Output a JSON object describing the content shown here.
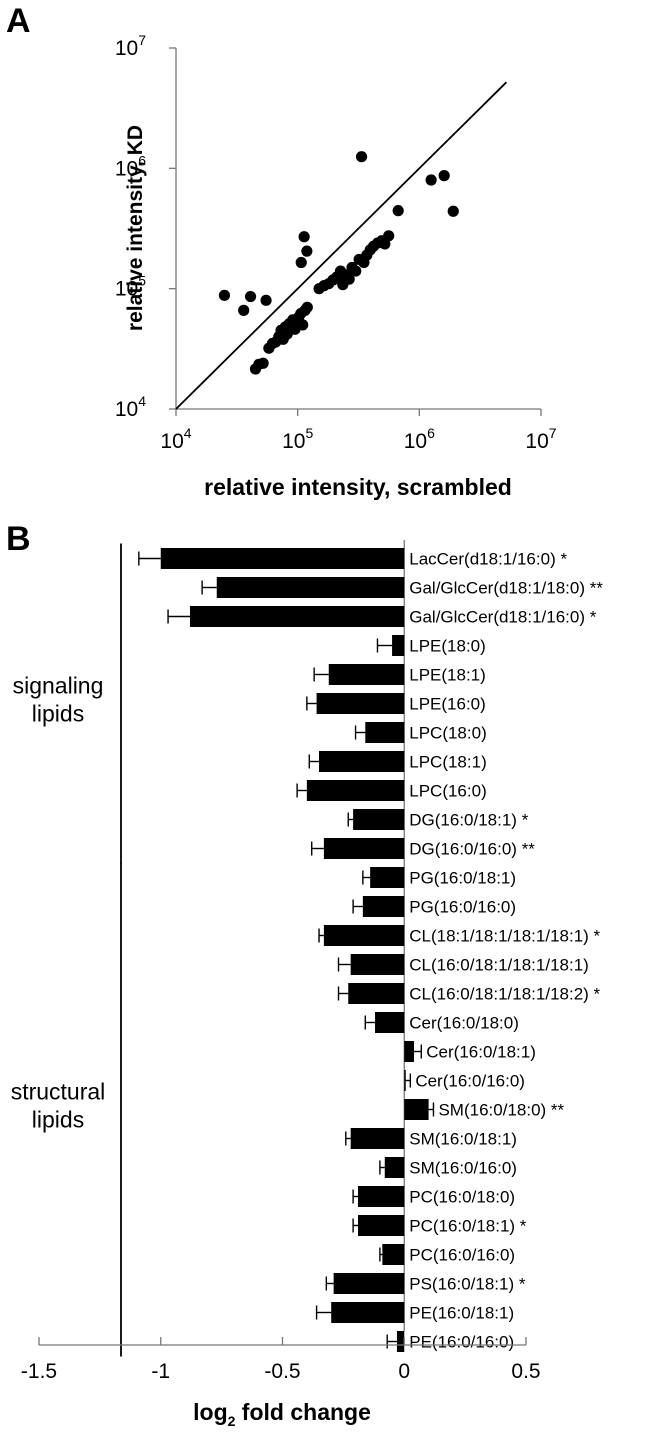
{
  "chart_data": [
    {
      "panel": "A",
      "type": "scatter",
      "xlabel": "relative intensity, scrambled",
      "ylabel": "relative intensity, KD",
      "xscale": "log",
      "yscale": "log",
      "xlim": [
        10000,
        10000000
      ],
      "ylim": [
        10000,
        10000000
      ],
      "x_ticks": [
        {
          "base": "10",
          "exp": "4"
        },
        {
          "base": "10",
          "exp": "5"
        },
        {
          "base": "10",
          "exp": "6"
        },
        {
          "base": "10",
          "exp": "7"
        }
      ],
      "y_ticks": [
        {
          "base": "10",
          "exp": "4"
        },
        {
          "base": "10",
          "exp": "5"
        },
        {
          "base": "10",
          "exp": "6"
        },
        {
          "base": "10",
          "exp": "7"
        }
      ],
      "reference_line": "y = x",
      "points": [
        {
          "x": 25000,
          "y": 88000
        },
        {
          "x": 36000,
          "y": 66000
        },
        {
          "x": 41000,
          "y": 86000
        },
        {
          "x": 55000,
          "y": 80000
        },
        {
          "x": 45000,
          "y": 21500
        },
        {
          "x": 48000,
          "y": 23500
        },
        {
          "x": 52000,
          "y": 24000
        },
        {
          "x": 58000,
          "y": 32000
        },
        {
          "x": 62000,
          "y": 35000
        },
        {
          "x": 66000,
          "y": 36000
        },
        {
          "x": 70000,
          "y": 40000
        },
        {
          "x": 73000,
          "y": 45000
        },
        {
          "x": 76000,
          "y": 38000
        },
        {
          "x": 79000,
          "y": 48000
        },
        {
          "x": 82000,
          "y": 42000
        },
        {
          "x": 85000,
          "y": 51000
        },
        {
          "x": 88000,
          "y": 47000
        },
        {
          "x": 91000,
          "y": 55000
        },
        {
          "x": 95000,
          "y": 46000
        },
        {
          "x": 98000,
          "y": 53000
        },
        {
          "x": 102000,
          "y": 58000
        },
        {
          "x": 106000,
          "y": 62000
        },
        {
          "x": 110000,
          "y": 50000
        },
        {
          "x": 115000,
          "y": 66000
        },
        {
          "x": 120000,
          "y": 70000
        },
        {
          "x": 107000,
          "y": 165000
        },
        {
          "x": 113000,
          "y": 270000
        },
        {
          "x": 119000,
          "y": 205000
        },
        {
          "x": 150000,
          "y": 100000
        },
        {
          "x": 165000,
          "y": 106000
        },
        {
          "x": 180000,
          "y": 110000
        },
        {
          "x": 195000,
          "y": 118000
        },
        {
          "x": 210000,
          "y": 125000
        },
        {
          "x": 225000,
          "y": 140000
        },
        {
          "x": 235000,
          "y": 108000
        },
        {
          "x": 250000,
          "y": 130000
        },
        {
          "x": 265000,
          "y": 120000
        },
        {
          "x": 280000,
          "y": 150000
        },
        {
          "x": 300000,
          "y": 140000
        },
        {
          "x": 320000,
          "y": 175000
        },
        {
          "x": 335000,
          "y": 1250000
        },
        {
          "x": 350000,
          "y": 165000
        },
        {
          "x": 370000,
          "y": 190000
        },
        {
          "x": 395000,
          "y": 210000
        },
        {
          "x": 420000,
          "y": 225000
        },
        {
          "x": 455000,
          "y": 240000
        },
        {
          "x": 490000,
          "y": 250000
        },
        {
          "x": 520000,
          "y": 235000
        },
        {
          "x": 560000,
          "y": 275000
        },
        {
          "x": 670000,
          "y": 445000
        },
        {
          "x": 1250000,
          "y": 800000
        },
        {
          "x": 1600000,
          "y": 870000
        },
        {
          "x": 1900000,
          "y": 440000
        }
      ]
    },
    {
      "panel": "B",
      "type": "bar",
      "orientation": "horizontal",
      "xlabel_main": "log",
      "xlabel_sub": "2",
      "xlabel_rest": " fold change",
      "xlim": [
        -1.5,
        0.5
      ],
      "x_ticks": [
        "-1.5",
        "-1",
        "-0.5",
        "0",
        "0.5"
      ],
      "groups": [
        {
          "label_line1": "signaling",
          "label_line2": "lipids",
          "from": 0,
          "to": 10
        },
        {
          "label_line1": "structural",
          "label_line2": "lipids",
          "from": 11,
          "to": 27
        }
      ],
      "bars": [
        {
          "label": "LacCer(d18:1/16:0) *",
          "value": -1.0,
          "error": 0.09
        },
        {
          "label": "Gal/GlcCer(d18:1/18:0) **",
          "value": -0.77,
          "error": 0.06
        },
        {
          "label": "Gal/GlcCer(d18:1/16:0) *",
          "value": -0.88,
          "error": 0.09
        },
        {
          "label": "LPE(18:0)",
          "value": -0.05,
          "error": 0.06
        },
        {
          "label": "LPE(18:1)",
          "value": -0.31,
          "error": 0.06
        },
        {
          "label": "LPE(16:0)",
          "value": -0.36,
          "error": 0.04
        },
        {
          "label": "LPC(18:0)",
          "value": -0.16,
          "error": 0.04
        },
        {
          "label": "LPC(18:1)",
          "value": -0.35,
          "error": 0.04
        },
        {
          "label": "LPC(16:0)",
          "value": -0.4,
          "error": 0.04
        },
        {
          "label": "DG(16:0/18:1) *",
          "value": -0.21,
          "error": 0.02
        },
        {
          "label": "DG(16:0/16:0) **",
          "value": -0.33,
          "error": 0.05
        },
        {
          "label": "PG(16:0/18:1)",
          "value": -0.14,
          "error": 0.03
        },
        {
          "label": "PG(16:0/16:0)",
          "value": -0.17,
          "error": 0.04
        },
        {
          "label": "CL(18:1/18:1/18:1/18:1) *",
          "value": -0.33,
          "error": 0.02
        },
        {
          "label": "CL(16:0/18:1/18:1/18:1)",
          "value": -0.22,
          "error": 0.05
        },
        {
          "label": "CL(16:0/18:1/18:1/18:2) *",
          "value": -0.23,
          "error": 0.04
        },
        {
          "label": "Cer(16:0/18:0)",
          "value": -0.12,
          "error": 0.04
        },
        {
          "label": "Cer(16:0/18:1)",
          "value": 0.04,
          "error": 0.03
        },
        {
          "label": "Cer(16:0/16:0)",
          "value": 0.005,
          "error": 0.02
        },
        {
          "label": "SM(16:0/18:0) **",
          "value": 0.1,
          "error": 0.02
        },
        {
          "label": "SM(16:0/18:1)",
          "value": -0.22,
          "error": 0.02
        },
        {
          "label": "SM(16:0/16:0)",
          "value": -0.08,
          "error": 0.02
        },
        {
          "label": "PC(16:0/18:0)",
          "value": -0.19,
          "error": 0.02
        },
        {
          "label": "PC(16:0/18:1) *",
          "value": -0.19,
          "error": 0.02
        },
        {
          "label": "PC(16:0/16:0)",
          "value": -0.09,
          "error": 0.01
        },
        {
          "label": "PS(16:0/18:1) *",
          "value": -0.29,
          "error": 0.03
        },
        {
          "label": "PE(16:0/18:1)",
          "value": -0.3,
          "error": 0.06
        },
        {
          "label": "PE(16:0/16:0)",
          "value": -0.03,
          "error": 0.04
        }
      ]
    }
  ],
  "panels": {
    "a_letter": "A",
    "b_letter": "B"
  }
}
